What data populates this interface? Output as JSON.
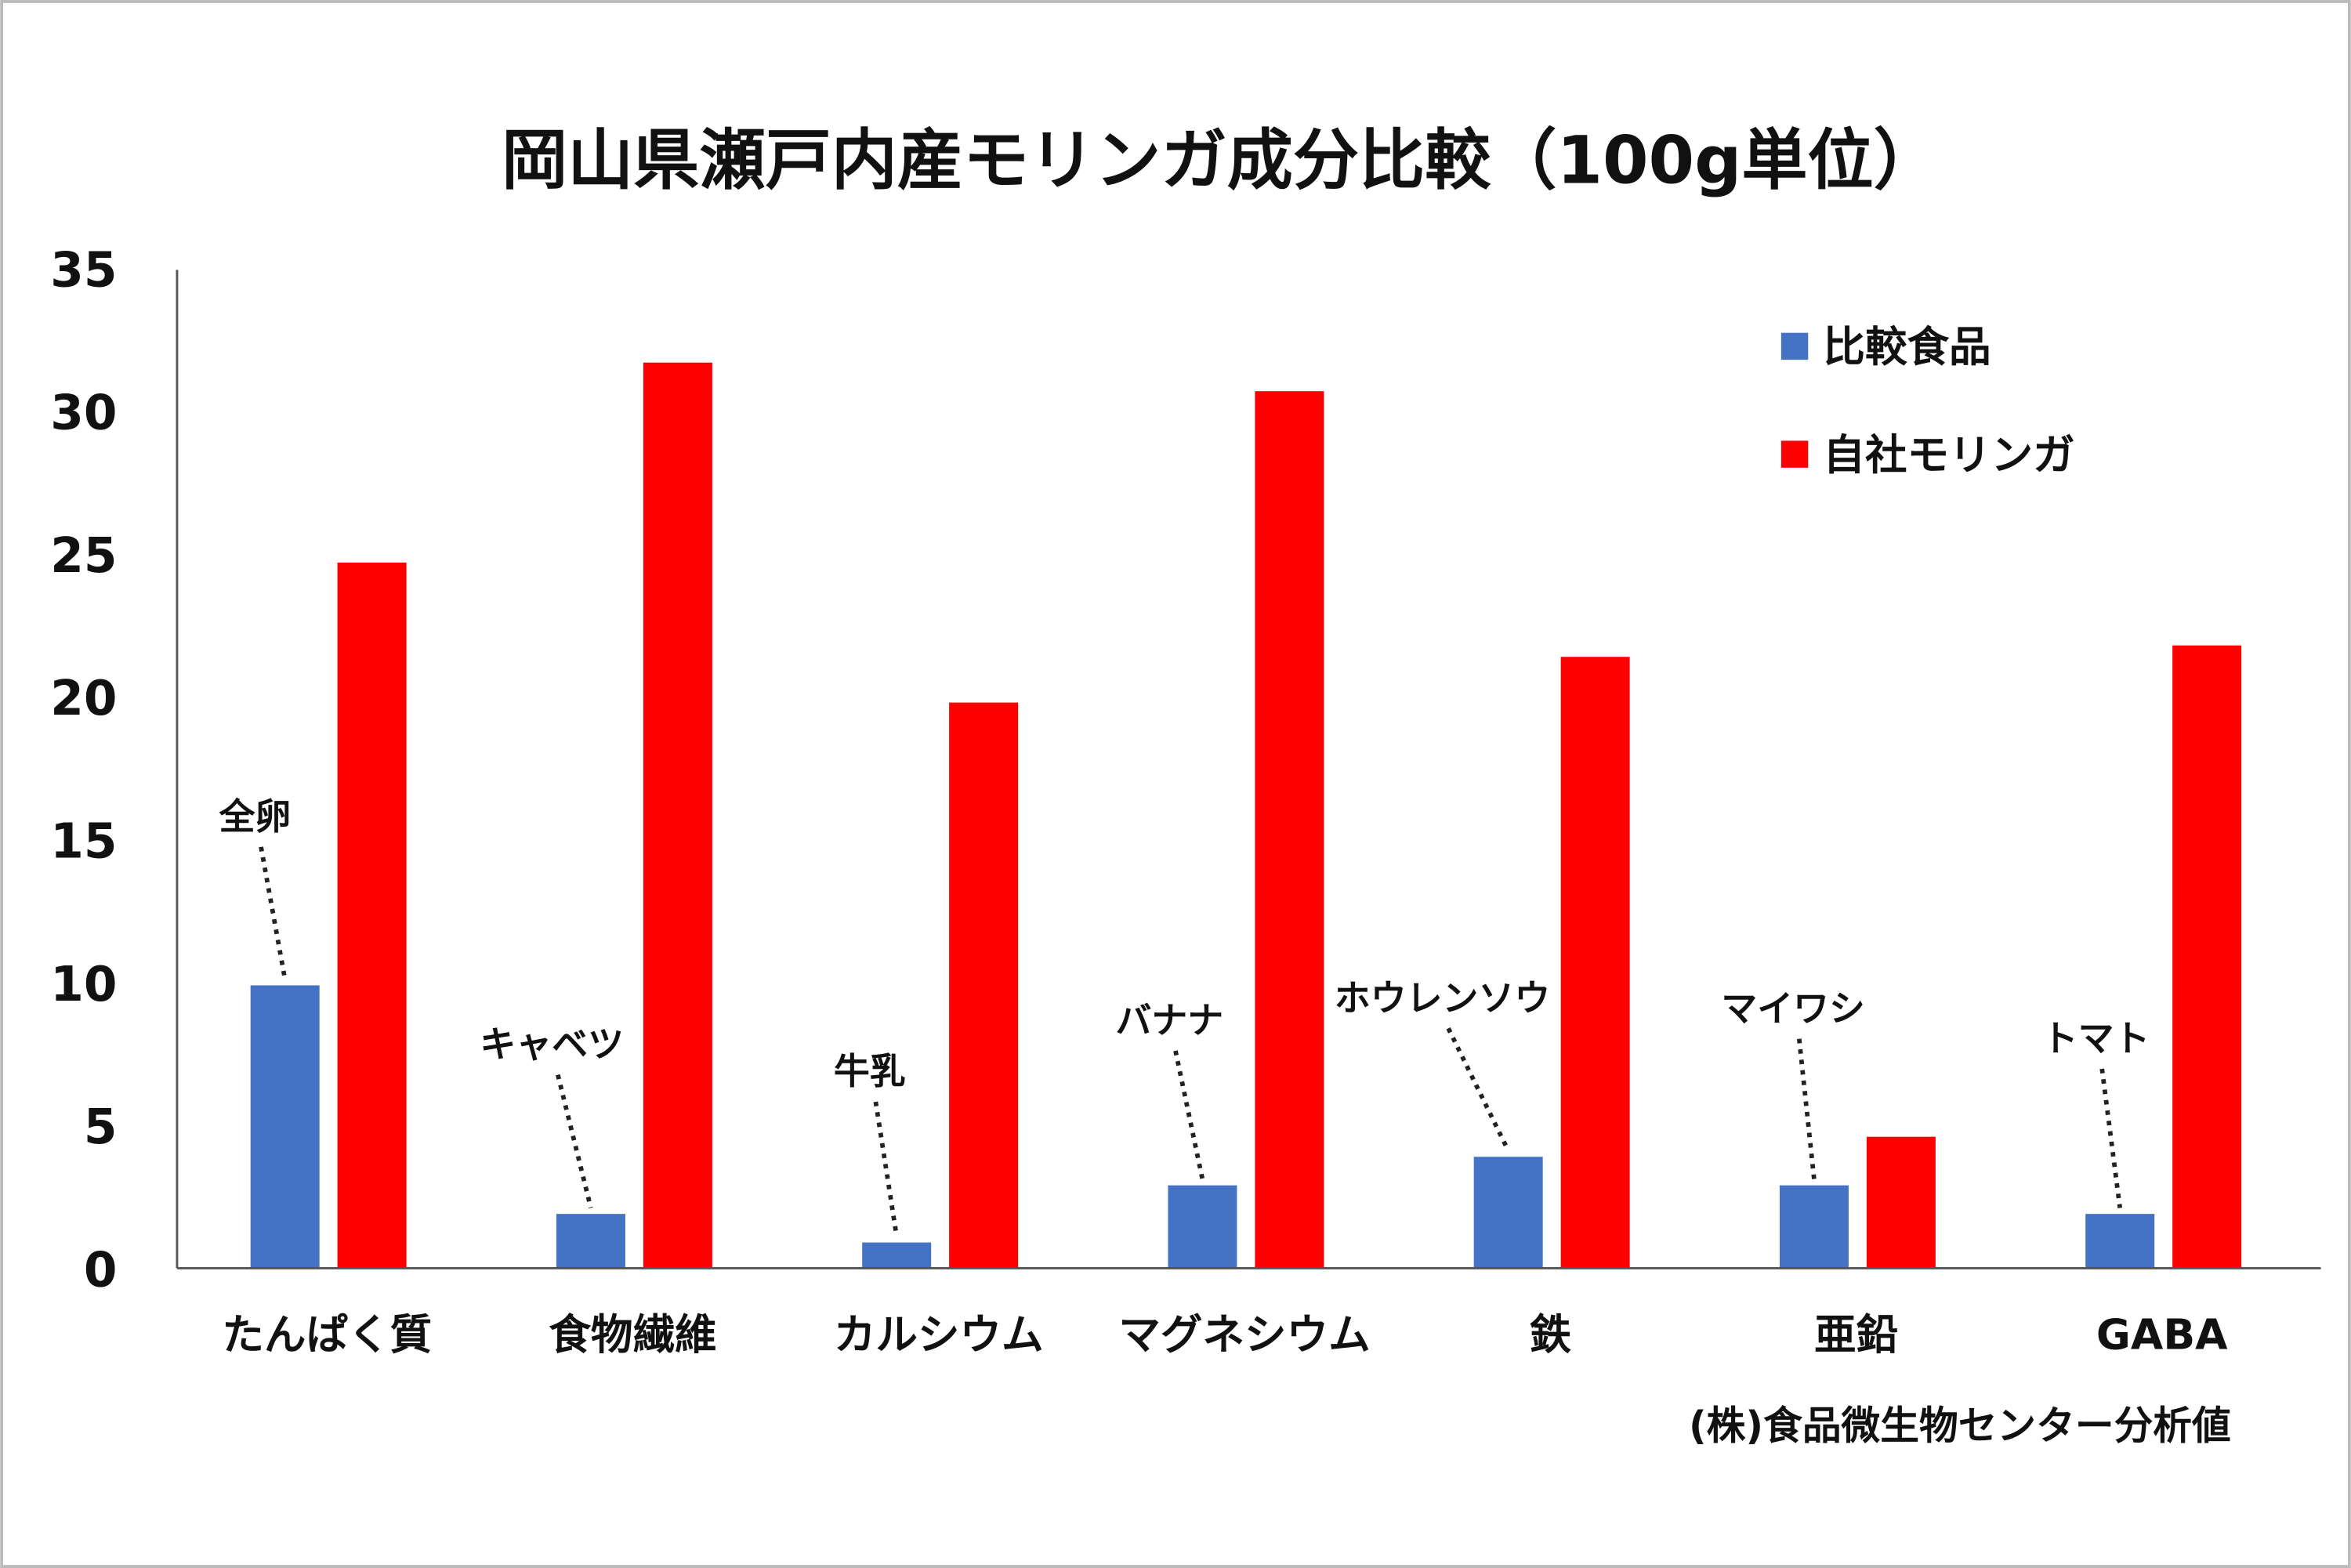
{
  "chart_data": {
    "type": "bar",
    "title": "岡山県瀬戸内産モリンガ成分比較（100g単位）",
    "categories": [
      "たんぱく質",
      "食物繊維",
      "カルシウム",
      "マグネシウム",
      "鉄",
      "亜鉛",
      "GABA"
    ],
    "series": [
      {
        "name": "比較食品",
        "color": "#4472C4",
        "values": [
          9.9,
          1.9,
          0.9,
          2.9,
          3.9,
          2.9,
          1.9
        ],
        "point_labels": [
          "全卵",
          "キャベツ",
          "牛乳",
          "バナナ",
          "ホウレンソウ",
          "マイワシ",
          "トマト"
        ]
      },
      {
        "name": "自社モリンガ",
        "color": "#FF0000",
        "values": [
          24.7,
          31.7,
          19.8,
          30.7,
          21.4,
          4.6,
          21.8
        ]
      }
    ],
    "yticks": [
      0,
      5,
      10,
      15,
      20,
      25,
      30,
      35
    ],
    "ylim": [
      0,
      35
    ],
    "grid": false,
    "legend": "top-right",
    "xlabel": "",
    "ylabel": "",
    "source_note": "(株)食品微生物センター分析値"
  }
}
